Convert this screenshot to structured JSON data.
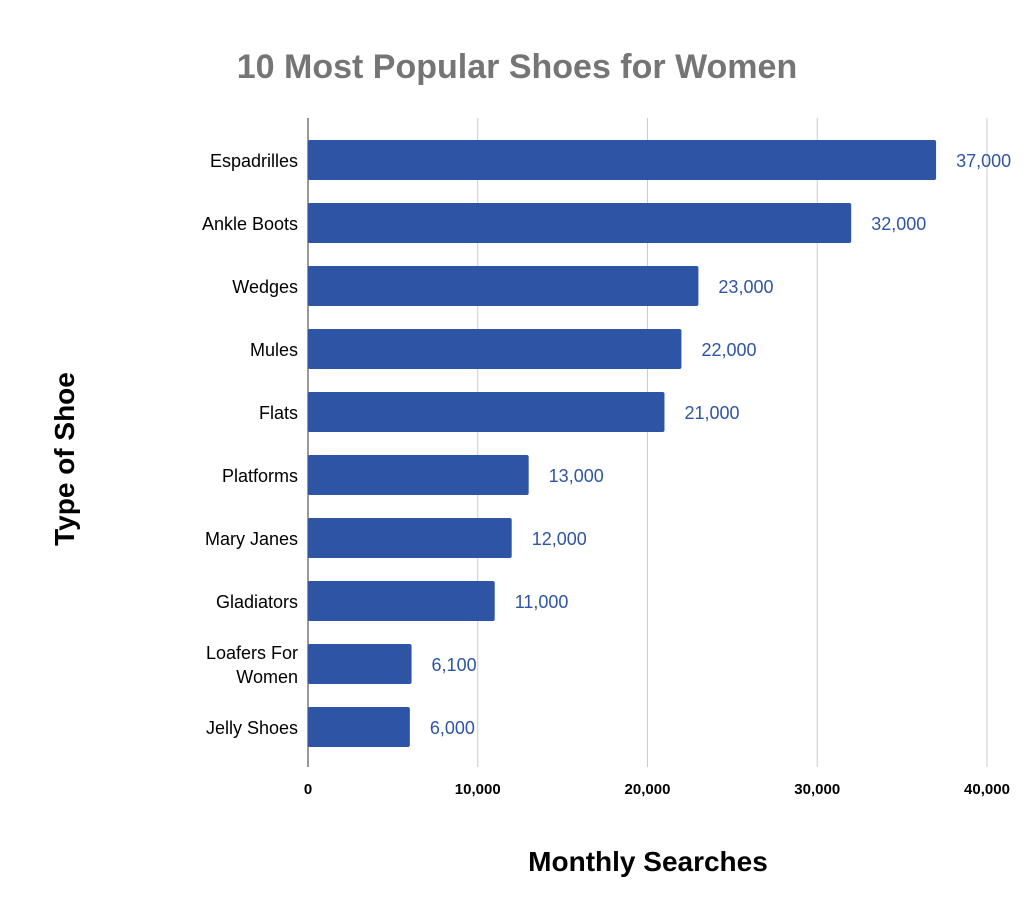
{
  "chart_data": {
    "type": "bar",
    "orientation": "horizontal",
    "title": "10 Most Popular Shoes for Women",
    "xlabel": "Monthly Searches",
    "ylabel": "Type of Shoe",
    "categories": [
      "Espadrilles",
      "Ankle Boots",
      "Wedges",
      "Mules",
      "Flats",
      "Platforms",
      "Mary Janes",
      "Gladiators",
      "Loafers For Women",
      "Jelly Shoes"
    ],
    "category_lines": [
      [
        "Espadrilles"
      ],
      [
        "Ankle Boots"
      ],
      [
        "Wedges"
      ],
      [
        "Mules"
      ],
      [
        "Flats"
      ],
      [
        "Platforms"
      ],
      [
        "Mary Janes"
      ],
      [
        "Gladiators"
      ],
      [
        "Loafers For",
        "Women"
      ],
      [
        "Jelly Shoes"
      ]
    ],
    "values": [
      37000,
      32000,
      23000,
      22000,
      21000,
      13000,
      12000,
      11000,
      6100,
      6000
    ],
    "data_labels": [
      "37,000",
      "32,000",
      "23,000",
      "22,000",
      "21,000",
      "13,000",
      "12,000",
      "11,000",
      "6,100",
      "6,000"
    ],
    "xlim": [
      0,
      40000
    ],
    "x_ticks": [
      0,
      10000,
      20000,
      30000,
      40000
    ],
    "x_tick_labels": [
      "0",
      "10,000",
      "20,000",
      "30,000",
      "40,000"
    ],
    "grid": true,
    "legend": "none",
    "colors": {
      "bar": "#2e55a5",
      "data_label": "#2e55a5",
      "title": "#757575"
    }
  }
}
